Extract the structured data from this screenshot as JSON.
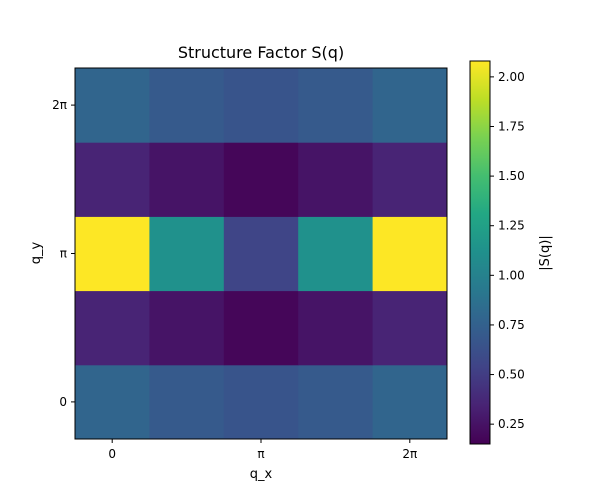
{
  "chart_data": {
    "type": "heatmap",
    "title": "Structure Factor S(q)",
    "xlabel": "q_x",
    "ylabel": "q_y",
    "colorbar_label": "|S(q)|",
    "colormap": "viridis",
    "x_ticks": [
      {
        "label": "0",
        "value": 0
      },
      {
        "label": "π",
        "value": 2
      },
      {
        "label": "2π",
        "value": 4
      }
    ],
    "y_ticks": [
      {
        "label": "0",
        "value": 0
      },
      {
        "label": "π",
        "value": 2
      },
      {
        "label": "2π",
        "value": 4
      }
    ],
    "grid_columns": 5,
    "grid_rows": 5,
    "values": [
      [
        0.78,
        0.7,
        0.66,
        0.7,
        0.78
      ],
      [
        0.35,
        0.26,
        0.18,
        0.26,
        0.35
      ],
      [
        2.08,
        1.12,
        0.55,
        1.12,
        2.08
      ],
      [
        0.35,
        0.26,
        0.18,
        0.26,
        0.35
      ],
      [
        0.78,
        0.7,
        0.66,
        0.7,
        0.78
      ]
    ],
    "color_range": [
      0.15,
      2.08
    ],
    "colorbar_ticks": [
      "0.25",
      "0.50",
      "0.75",
      "1.00",
      "1.25",
      "1.50",
      "1.75",
      "2.00"
    ],
    "grid": false
  }
}
